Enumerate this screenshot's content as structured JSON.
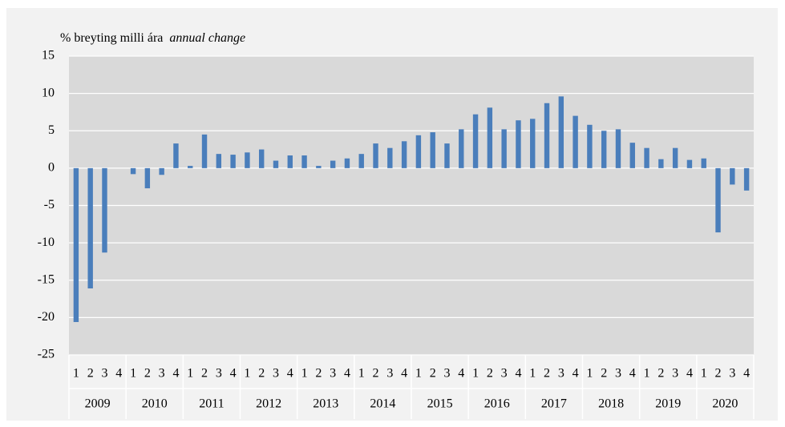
{
  "chart_data": {
    "type": "bar",
    "title": "% breyting milli ára",
    "subtitle": "annual change",
    "categories": [
      "1",
      "2",
      "3",
      "4",
      "1",
      "2",
      "3",
      "4",
      "1",
      "2",
      "3",
      "4",
      "1",
      "2",
      "3",
      "4",
      "1",
      "2",
      "3",
      "4",
      "1",
      "2",
      "3",
      "4",
      "1",
      "2",
      "3",
      "4",
      "1",
      "2",
      "3",
      "4",
      "1",
      "2",
      "3",
      "4",
      "1",
      "2",
      "3",
      "4",
      "1",
      "2",
      "3",
      "4",
      "1",
      "2",
      "3",
      "4"
    ],
    "groups": [
      "2009",
      "2010",
      "2011",
      "2012",
      "2013",
      "2014",
      "2015",
      "2016",
      "2017",
      "2018",
      "2019",
      "2020"
    ],
    "values": [
      -20.6,
      -16.1,
      -11.3,
      0,
      -0.8,
      -2.7,
      -0.9,
      3.3,
      0.3,
      4.5,
      1.9,
      1.8,
      2.1,
      2.5,
      1.0,
      1.7,
      1.7,
      0.3,
      1.0,
      1.3,
      1.9,
      3.3,
      2.7,
      3.6,
      4.4,
      4.8,
      3.3,
      5.2,
      7.2,
      8.1,
      5.2,
      6.4,
      6.6,
      8.7,
      9.6,
      7.0,
      5.8,
      5.0,
      5.2,
      3.4,
      2.7,
      1.2,
      2.7,
      1.1,
      1.3,
      -8.6,
      -2.2,
      -3.0
    ],
    "color": "#4a7ebb",
    "ylim": [
      -25,
      15
    ],
    "yticks": [
      15,
      10,
      5,
      0,
      -5,
      -10,
      -15,
      -20,
      -25
    ],
    "grid": true
  }
}
